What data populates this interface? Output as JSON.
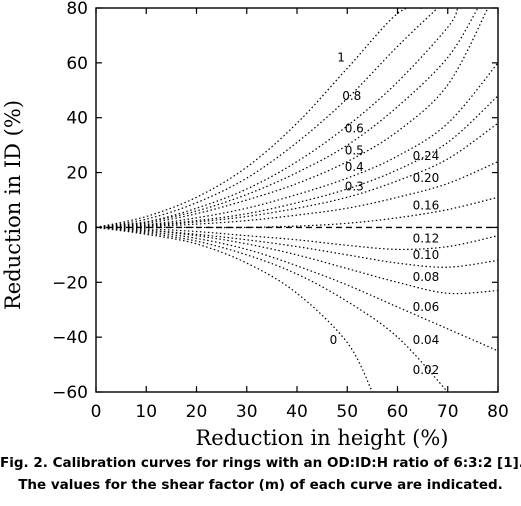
{
  "caption": {
    "line1": "Fig. 2. Calibration curves for rings with an OD:ID:H ratio of 6:3:2 [1].",
    "line2": "The values for the shear factor (m) of each curve are indicated."
  },
  "chart_data": {
    "type": "line",
    "title": "",
    "xlabel": "Reduction in height (%)",
    "ylabel": "Reduction in ID (%)",
    "xlim": [
      0,
      80
    ],
    "ylim": [
      -60,
      80
    ],
    "xticks": [
      0,
      10,
      20,
      30,
      40,
      50,
      60,
      70,
      80
    ],
    "yticks": [
      -60,
      -40,
      -20,
      0,
      20,
      40,
      60,
      80
    ],
    "grid": false,
    "series": [
      {
        "name": "1",
        "label_at": [
          48,
          62
        ],
        "x": [
          0,
          10,
          20,
          30,
          40,
          50,
          60,
          65
        ],
        "y": [
          0,
          4,
          11,
          22,
          38,
          58,
          78,
          80
        ]
      },
      {
        "name": "0.8",
        "label_at": [
          49,
          48
        ],
        "x": [
          0,
          10,
          20,
          30,
          40,
          50,
          60,
          68
        ],
        "y": [
          0,
          3,
          9,
          18,
          31,
          47,
          66,
          80
        ]
      },
      {
        "name": "0.6",
        "label_at": [
          49.5,
          36
        ],
        "x": [
          0,
          10,
          20,
          30,
          40,
          50,
          60,
          70,
          72
        ],
        "y": [
          0,
          2,
          7,
          14,
          24,
          37,
          53,
          73,
          80
        ]
      },
      {
        "name": "0.5",
        "label_at": [
          49.5,
          28
        ],
        "x": [
          0,
          10,
          20,
          30,
          40,
          50,
          60,
          70,
          76
        ],
        "y": [
          0,
          2,
          6,
          12,
          20,
          30,
          44,
          62,
          80
        ]
      },
      {
        "name": "0.4",
        "label_at": [
          49.5,
          22
        ],
        "x": [
          0,
          10,
          20,
          30,
          40,
          50,
          60,
          70,
          78
        ],
        "y": [
          0,
          1.5,
          5,
          10,
          16,
          24,
          35,
          52,
          80
        ]
      },
      {
        "name": "0.3",
        "label_at": [
          49.5,
          15
        ],
        "x": [
          0,
          10,
          20,
          30,
          40,
          50,
          60,
          70,
          80
        ],
        "y": [
          0,
          1,
          3.5,
          7,
          12,
          18,
          26,
          38,
          60
        ]
      },
      {
        "name": "0.24",
        "label_at": [
          63,
          26
        ],
        "x": [
          0,
          10,
          20,
          30,
          40,
          50,
          60,
          70,
          80
        ],
        "y": [
          0,
          0.8,
          2.5,
          5,
          9,
          14,
          21,
          31,
          48
        ]
      },
      {
        "name": "0.20",
        "label_at": [
          63,
          18
        ],
        "x": [
          0,
          10,
          20,
          30,
          40,
          50,
          60,
          70,
          80
        ],
        "y": [
          0,
          0.6,
          2,
          4,
          7,
          11,
          17,
          25,
          38
        ]
      },
      {
        "name": "0.16",
        "label_at": [
          63,
          8
        ],
        "x": [
          0,
          10,
          20,
          30,
          40,
          50,
          60,
          70,
          80
        ],
        "y": [
          0,
          0.4,
          1.2,
          2.5,
          4.5,
          7,
          11,
          16,
          24
        ]
      },
      {
        "name": "0.12",
        "label_at": [
          63,
          -4
        ],
        "x": [
          0,
          10,
          20,
          30,
          40,
          50,
          60,
          70,
          80
        ],
        "y": [
          0,
          0,
          0,
          0,
          0.5,
          1.5,
          3.5,
          6.5,
          11
        ]
      },
      {
        "name": "0.10",
        "label_at": [
          63,
          -10
        ],
        "x": [
          0,
          10,
          20,
          30,
          40,
          50,
          60,
          70,
          80
        ],
        "y": [
          0,
          -0.5,
          -1.5,
          -3,
          -4.5,
          -6.5,
          -8,
          -7,
          -3
        ]
      },
      {
        "name": "0.08",
        "label_at": [
          63,
          -18
        ],
        "x": [
          0,
          10,
          20,
          30,
          40,
          50,
          60,
          70,
          80
        ],
        "y": [
          0,
          -1,
          -2.5,
          -4.5,
          -7,
          -10,
          -13,
          -14.5,
          -12
        ]
      },
      {
        "name": "0.06",
        "label_at": [
          63,
          -29
        ],
        "x": [
          0,
          10,
          20,
          30,
          40,
          50,
          60,
          70,
          80
        ],
        "y": [
          0,
          -1,
          -3,
          -6,
          -10,
          -15,
          -20,
          -24,
          -23
        ]
      },
      {
        "name": "0.04",
        "label_at": [
          63,
          -41
        ],
        "x": [
          0,
          10,
          20,
          30,
          40,
          50,
          60,
          70,
          80
        ],
        "y": [
          0,
          -1.5,
          -4,
          -8,
          -14,
          -21,
          -29,
          -37,
          -45
        ]
      },
      {
        "name": "0.02",
        "label_at": [
          63,
          -52
        ],
        "x": [
          0,
          10,
          20,
          30,
          40,
          50,
          60,
          70
        ],
        "y": [
          0,
          -2,
          -5,
          -10,
          -17,
          -27,
          -40,
          -60
        ]
      },
      {
        "name": "0",
        "label_at": [
          46.5,
          -41
        ],
        "x": [
          0,
          10,
          20,
          30,
          40,
          50,
          55
        ],
        "y": [
          0,
          -2.5,
          -6,
          -13,
          -24,
          -42,
          -60
        ]
      }
    ]
  }
}
